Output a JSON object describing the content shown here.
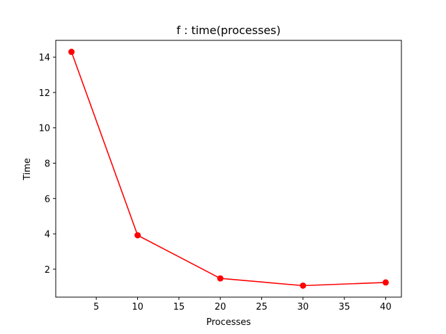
{
  "chart_data": {
    "type": "line",
    "title": "f : time(processes)",
    "xlabel": "Processes",
    "ylabel": "Time",
    "x": [
      2,
      10,
      20,
      30,
      40
    ],
    "series": [
      {
        "values": [
          14.3,
          3.92,
          1.48,
          1.07,
          1.25
        ],
        "color": "#ff0000",
        "marker": "circle"
      }
    ],
    "xlim": [
      0.1,
      41.9
    ],
    "ylim": [
      0.42,
      14.95
    ],
    "xticks": [
      5,
      10,
      15,
      20,
      25,
      30,
      35,
      40
    ],
    "yticks": [
      2,
      4,
      6,
      8,
      10,
      12,
      14
    ],
    "grid": false
  }
}
